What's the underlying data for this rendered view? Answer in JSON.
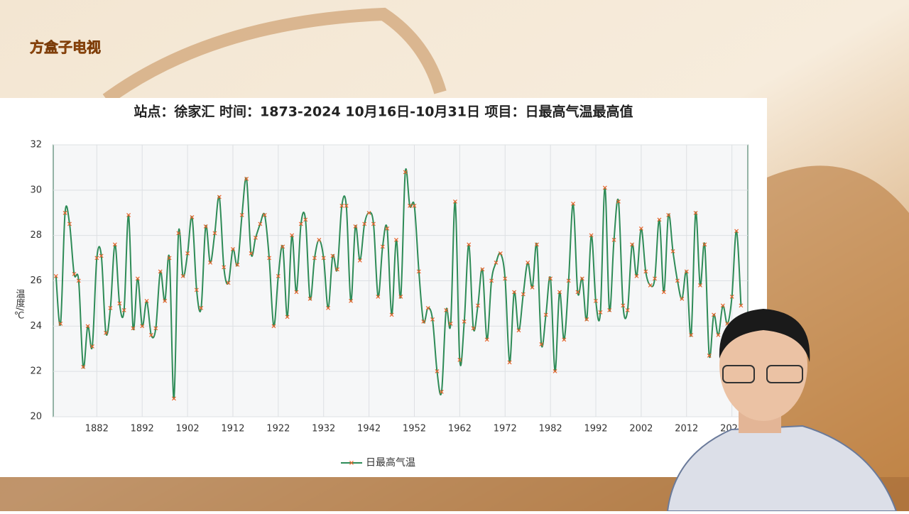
{
  "logo": "方盒子电视",
  "chart_data": {
    "type": "line",
    "title": "站点：徐家汇 时间：1873-2024  10月16日-10月31日 项目：日最高气温最高值",
    "y_label": "温度/℃",
    "x": [
      1873,
      1874,
      1875,
      1876,
      1877,
      1878,
      1879,
      1880,
      1881,
      1882,
      1883,
      1884,
      1885,
      1886,
      1887,
      1888,
      1889,
      1890,
      1891,
      1892,
      1893,
      1894,
      1895,
      1896,
      1897,
      1898,
      1899,
      1900,
      1901,
      1902,
      1903,
      1904,
      1905,
      1906,
      1907,
      1908,
      1909,
      1910,
      1911,
      1912,
      1913,
      1914,
      1915,
      1916,
      1917,
      1918,
      1919,
      1920,
      1921,
      1922,
      1923,
      1924,
      1925,
      1926,
      1927,
      1928,
      1929,
      1930,
      1931,
      1932,
      1933,
      1934,
      1935,
      1936,
      1937,
      1938,
      1939,
      1940,
      1941,
      1942,
      1943,
      1944,
      1945,
      1946,
      1947,
      1948,
      1949,
      1950,
      1951,
      1952,
      1953,
      1954,
      1955,
      1956,
      1957,
      1958,
      1959,
      1960,
      1961,
      1962,
      1963,
      1964,
      1965,
      1966,
      1967,
      1968,
      1969,
      1970,
      1971,
      1972,
      1973,
      1974,
      1975,
      1976,
      1977,
      1978,
      1979,
      1980,
      1981,
      1982,
      1983,
      1984,
      1985,
      1986,
      1987,
      1988,
      1989,
      1990,
      1991,
      1992,
      1993,
      1994,
      1995,
      1996,
      1997,
      1998,
      1999,
      2000,
      2001,
      2002,
      2003,
      2004,
      2005,
      2006,
      2007,
      2008,
      2009,
      2010,
      2011,
      2012,
      2013,
      2014,
      2015,
      2016,
      2017,
      2018,
      2019,
      2020,
      2021,
      2022,
      2023,
      2024
    ],
    "series": [
      {
        "name": "日最高气温",
        "color": "#2e8b57",
        "marker_color": "#e8632a",
        "values": [
          26.2,
          24.1,
          29.0,
          28.5,
          26.3,
          26.0,
          22.2,
          24.0,
          23.1,
          27.0,
          27.1,
          23.7,
          24.8,
          27.6,
          25.0,
          24.7,
          28.9,
          23.9,
          26.1,
          24.0,
          25.1,
          23.6,
          23.9,
          26.4,
          25.1,
          27.0,
          20.8,
          28.1,
          26.2,
          27.2,
          28.8,
          25.6,
          24.8,
          28.4,
          26.8,
          28.1,
          29.7,
          26.6,
          25.9,
          27.4,
          26.7,
          28.9,
          30.5,
          27.2,
          27.9,
          28.5,
          28.9,
          27.0,
          24.0,
          26.2,
          27.5,
          24.4,
          28.0,
          25.5,
          28.5,
          28.7,
          25.2,
          27.0,
          27.8,
          27.0,
          24.8,
          27.1,
          26.5,
          29.3,
          29.3,
          25.1,
          28.4,
          26.9,
          28.5,
          29.0,
          28.5,
          25.3,
          27.5,
          28.3,
          24.5,
          27.8,
          25.3,
          30.8,
          29.3,
          29.3,
          26.4,
          24.2,
          24.8,
          24.3,
          22.0,
          21.1,
          24.7,
          24.1,
          29.5,
          22.5,
          24.2,
          27.6,
          23.9,
          24.9,
          26.5,
          23.4,
          26.0,
          26.8,
          27.2,
          26.1,
          22.4,
          25.5,
          23.8,
          25.4,
          26.8,
          25.7,
          27.6,
          23.2,
          24.5,
          26.1,
          22.0,
          25.5,
          23.4,
          26.0,
          29.4,
          25.5,
          26.1,
          24.3,
          28.0,
          25.1,
          24.6,
          30.1,
          24.7,
          27.8,
          29.5,
          24.9,
          24.7,
          27.6,
          26.2,
          28.3,
          26.4,
          25.8,
          26.1,
          28.7,
          25.5,
          28.9,
          27.3,
          26.0,
          25.2,
          26.4,
          23.6,
          29.0,
          25.8,
          27.6,
          22.7,
          24.5,
          23.6,
          24.9,
          24.1,
          25.3,
          28.2,
          24.9
        ]
      }
    ],
    "xlim": [
      1872.4,
      2025.5
    ],
    "xticks": [
      1882,
      1892,
      1902,
      1912,
      1922,
      1932,
      1942,
      1952,
      1962,
      1972,
      1982,
      1992,
      2002,
      2012,
      2022
    ],
    "ylim": [
      20,
      32
    ],
    "yticks": [
      20,
      22,
      24,
      26,
      28,
      30,
      32
    ],
    "grid": true
  }
}
